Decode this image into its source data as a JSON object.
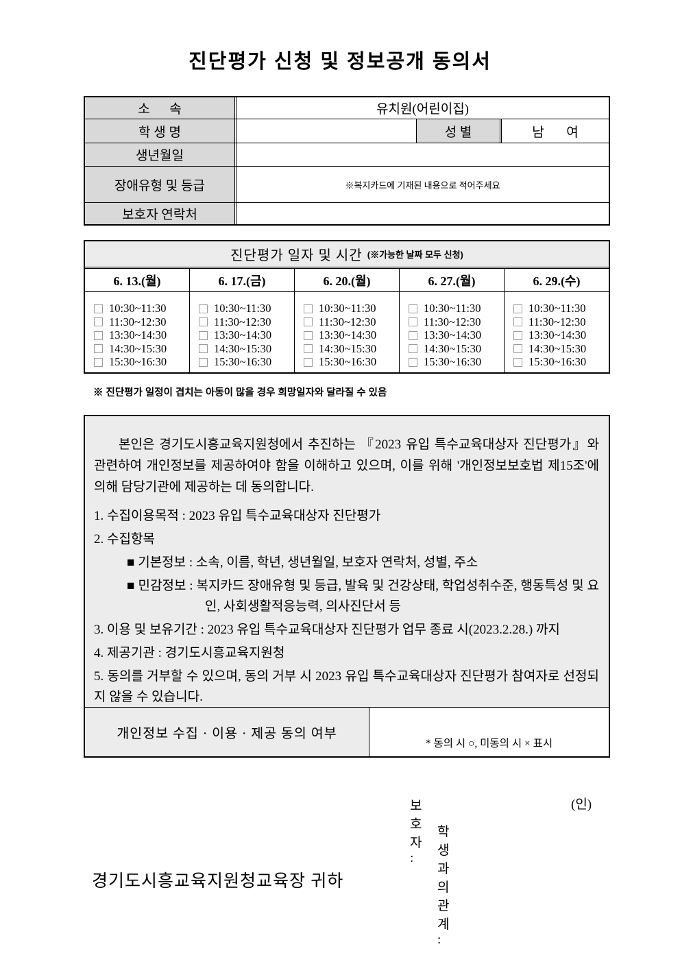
{
  "title": "진단평가 신청 및 정보공개 동의서",
  "info_table": {
    "belong_label": "소      속",
    "belong_value": "유치원(어린이집)",
    "name_label": "학 생 명",
    "name_value": "",
    "gender_label": "성 별",
    "gender_male": "남",
    "gender_female": "여",
    "birth_label": "생년월일",
    "birth_value": "",
    "disability_label": "장애유형 및 등급",
    "disability_note": "※복지카드에 기재된 내용으로 적어주세요",
    "contact_label": "보호자 연락처",
    "contact_value": ""
  },
  "schedule": {
    "caption": "진단평가 일자 및 시간",
    "caption_note": "(※가능한 날짜 모두 신청)",
    "dates": [
      "6. 13.(월)",
      "6. 17.(금)",
      "6. 20.(월)",
      "6. 27.(월)",
      "6. 29.(수)"
    ],
    "times": [
      "10:30~11:30",
      "11:30~12:30",
      "13:30~14:30",
      "14:30~15:30",
      "15:30~16:30"
    ],
    "note": "※ 진단평가 일정이 겹치는 아동이 많을 경우 희망일자와 달라질 수 있음"
  },
  "consent": {
    "intro": "본인은 경기도시흥교육지원청에서 추진하는 『2023 유입 특수교육대상자 진단평가』와 관련하여 개인정보를 제공하여야 함을 이해하고 있으며, 이를 위해 '개인정보보호법 제15조'에 의해 담당기관에 제공하는 데 동의합니다.",
    "item1": "1. 수집이용목적 : 2023 유입 특수교육대상자 진단평가",
    "item2": "2. 수집항목",
    "item2_basic": "■ 기본정보 : 소속, 이름, 학년, 생년월일, 보호자 연락처, 성별, 주소",
    "item2_sensitive": "■ 민감정보 : 복지카드 장애유형 및 등급, 발육 및 건강상태, 학업성취수준, 행동특성 및 요인, 사회생활적응능력, 의사진단서 등",
    "item3": "3. 이용 및 보유기간 : 2023 유입 특수교육대상자 진단평가 업무 종료 시(2023.2.28.) 까지",
    "item4": "4. 제공기관 : 경기도시흥교육지원청",
    "item5": "5. 동의를 거부할 수 있으며, 동의 거부 시 2023 유입 특수교육대상자 진단평가 참여자로 선정되지 않을 수 있습니다.",
    "agree_label": "개인정보 수집 · 이용 · 제공 동의 여부",
    "agree_note": "* 동의 시 ○, 미동의 시 ×  표시"
  },
  "signature": {
    "guardian_label": "보호자 :",
    "seal": "(인)",
    "relation_label": "학생과의 관계 :"
  },
  "footer": "경기도시흥교육지원청교육장 귀하",
  "colors": {
    "header_gray": "#d9d9d9",
    "box_gray": "#ececec"
  }
}
